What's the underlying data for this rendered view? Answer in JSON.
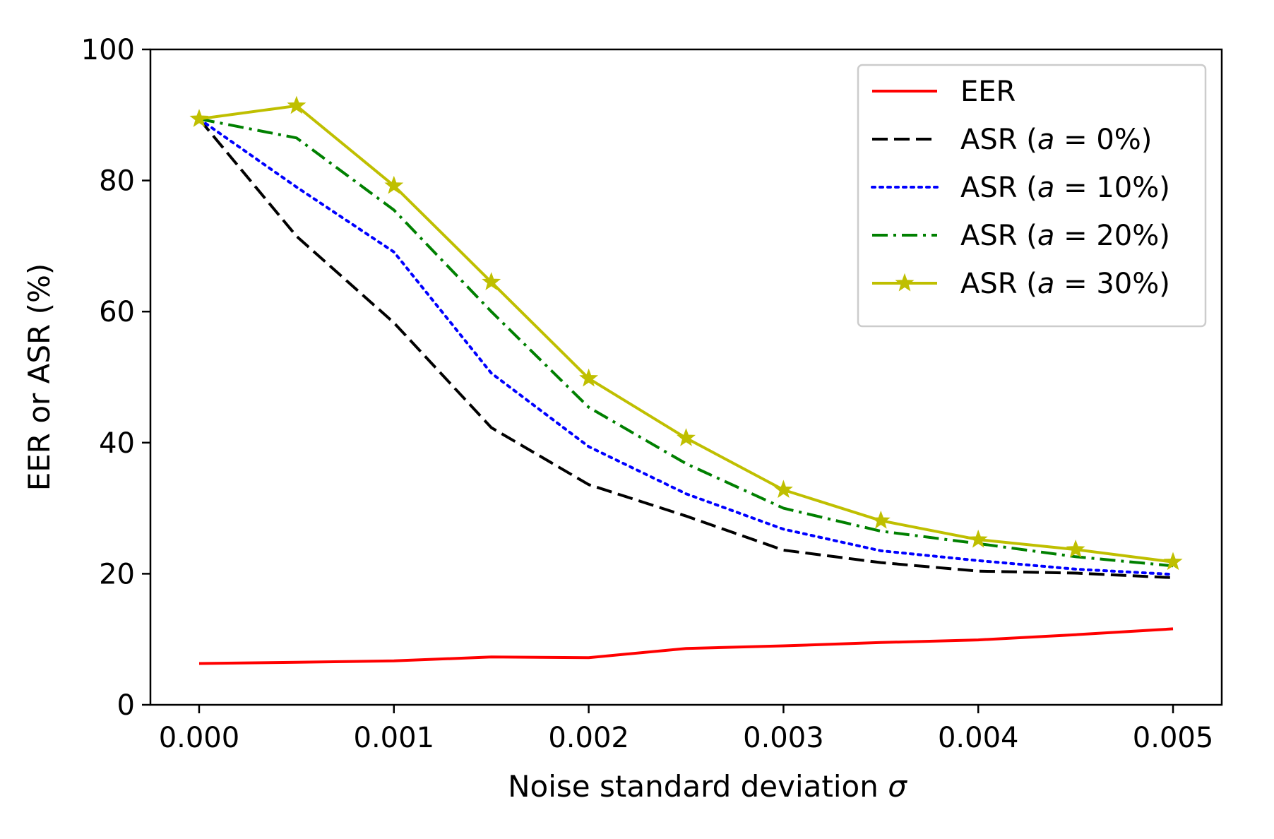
{
  "chart_data": {
    "type": "line",
    "title": "",
    "xlabel": "Noise standard deviation",
    "xlabel_symbol": "σ",
    "ylabel": "EER or ASR (%)",
    "xlim": [
      -0.00025,
      0.00525
    ],
    "ylim": [
      0,
      100
    ],
    "x": [
      0.0,
      0.0005,
      0.001,
      0.0015,
      0.002,
      0.0025,
      0.003,
      0.0035,
      0.004,
      0.0045,
      0.005
    ],
    "x_ticks": [
      "0.000",
      "0.001",
      "0.002",
      "0.003",
      "0.004",
      "0.005"
    ],
    "x_tick_values": [
      0.0,
      0.001,
      0.002,
      0.003,
      0.004,
      0.005
    ],
    "y_ticks": [
      "0",
      "20",
      "40",
      "60",
      "80",
      "100"
    ],
    "y_tick_values": [
      0,
      20,
      40,
      60,
      80,
      100
    ],
    "grid": false,
    "legend_position": "top-right",
    "series": [
      {
        "name": "EER",
        "label_prefix": "EER",
        "label_italic": "",
        "label_suffix": "",
        "color": "#ff0000",
        "dash": "",
        "marker": "",
        "values": [
          6.3,
          6.5,
          6.7,
          7.3,
          7.2,
          8.6,
          9.0,
          9.5,
          9.9,
          10.7,
          11.6
        ]
      },
      {
        "name": "ASR (a = 0%)",
        "label_prefix": "ASR (",
        "label_italic": "a",
        "label_suffix": " = 0%)",
        "color": "#000000",
        "dash": "dashed",
        "marker": "",
        "values": [
          89.4,
          71.5,
          58.3,
          42.3,
          33.6,
          28.8,
          23.6,
          21.7,
          20.4,
          20.1,
          19.4
        ]
      },
      {
        "name": "ASR (a = 10%)",
        "label_prefix": "ASR (",
        "label_italic": "a",
        "label_suffix": " = 10%)",
        "color": "#0000ff",
        "dash": "dotted",
        "marker": "",
        "values": [
          89.4,
          79.0,
          69.1,
          50.6,
          39.4,
          32.2,
          26.8,
          23.5,
          22.0,
          20.7,
          19.9
        ]
      },
      {
        "name": "ASR (a = 20%)",
        "label_prefix": "ASR (",
        "label_italic": "a",
        "label_suffix": " = 20%)",
        "color": "#008000",
        "dash": "dashdot",
        "marker": "",
        "values": [
          89.4,
          86.5,
          75.5,
          60.0,
          45.4,
          36.8,
          30.0,
          26.5,
          24.6,
          22.6,
          21.2
        ]
      },
      {
        "name": "ASR (a = 30%)",
        "label_prefix": "ASR (",
        "label_italic": "a",
        "label_suffix": " = 30%)",
        "color": "#bfbf00",
        "dash": "",
        "marker": "star",
        "values": [
          89.4,
          91.4,
          79.2,
          64.5,
          49.8,
          40.7,
          32.8,
          28.1,
          25.2,
          23.7,
          21.8
        ]
      }
    ]
  }
}
